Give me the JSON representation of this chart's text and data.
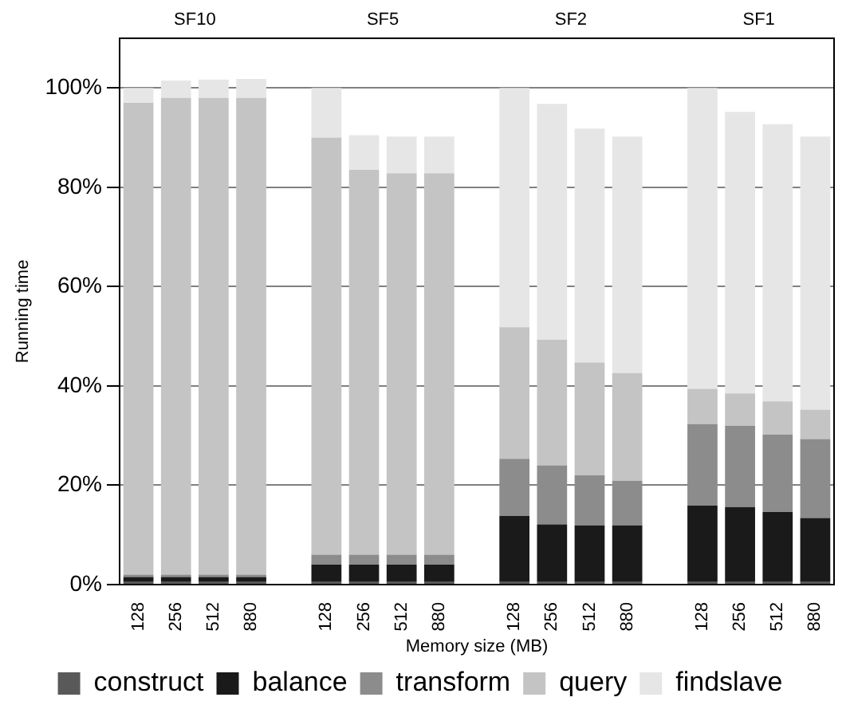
{
  "chart_data": {
    "type": "bar",
    "stacked": true,
    "categories": [
      "128",
      "256",
      "512",
      "880",
      null,
      "128",
      "256",
      "512",
      "880",
      null,
      "128",
      "256",
      "512",
      "880",
      null,
      "128",
      "256",
      "512",
      "880"
    ],
    "series": [
      {
        "name": "construct",
        "color": "#595959",
        "values": [
          0.5,
          0.5,
          0.5,
          0.5,
          null,
          0.5,
          0.5,
          0.5,
          0.5,
          null,
          0.5,
          0.5,
          0.5,
          0.5,
          null,
          0.5,
          0.5,
          0.5,
          0.5
        ]
      },
      {
        "name": "balance",
        "color": "#1a1a1a",
        "values": [
          1,
          1,
          1,
          1,
          null,
          3.5,
          3.5,
          3.5,
          3.5,
          null,
          13.3,
          11.6,
          11.4,
          11.4,
          null,
          15.4,
          15.1,
          14.1,
          12.9
        ]
      },
      {
        "name": "transform",
        "color": "#8c8c8c",
        "values": [
          0.5,
          0.5,
          0.5,
          0.5,
          null,
          2,
          2,
          2,
          2,
          null,
          11.5,
          11.9,
          10.1,
          9,
          null,
          16.4,
          16.4,
          15.6,
          15.9
        ]
      },
      {
        "name": "query",
        "color": "#c4c4c4",
        "values": [
          95,
          96,
          96,
          96,
          null,
          84,
          77.5,
          76.8,
          76.8,
          null,
          26.5,
          25.3,
          22.7,
          21.7,
          null,
          7.1,
          6.5,
          6.7,
          5.9
        ]
      },
      {
        "name": "findslave",
        "color": "#e6e6e6",
        "values": [
          3,
          3.5,
          3.7,
          3.8,
          null,
          10,
          7,
          7.4,
          7.4,
          null,
          48.2,
          47.5,
          47.1,
          47.6,
          null,
          60.6,
          56.7,
          55.8,
          55
        ]
      }
    ],
    "ylim": [
      0,
      110
    ],
    "yticks": [
      {
        "value": 0,
        "label": "0%"
      },
      {
        "value": 20,
        "label": "20%"
      },
      {
        "value": 40,
        "label": "40%"
      },
      {
        "value": 60,
        "label": "60%"
      },
      {
        "value": 80,
        "label": "80%"
      },
      {
        "value": 100,
        "label": "100%"
      }
    ],
    "grid": "y",
    "xlabel": "Memory size (MB)",
    "ylabel": "Running time",
    "annotations": [
      "SF10",
      "SF5",
      "SF2",
      "SF1"
    ],
    "legend": "bottom"
  }
}
